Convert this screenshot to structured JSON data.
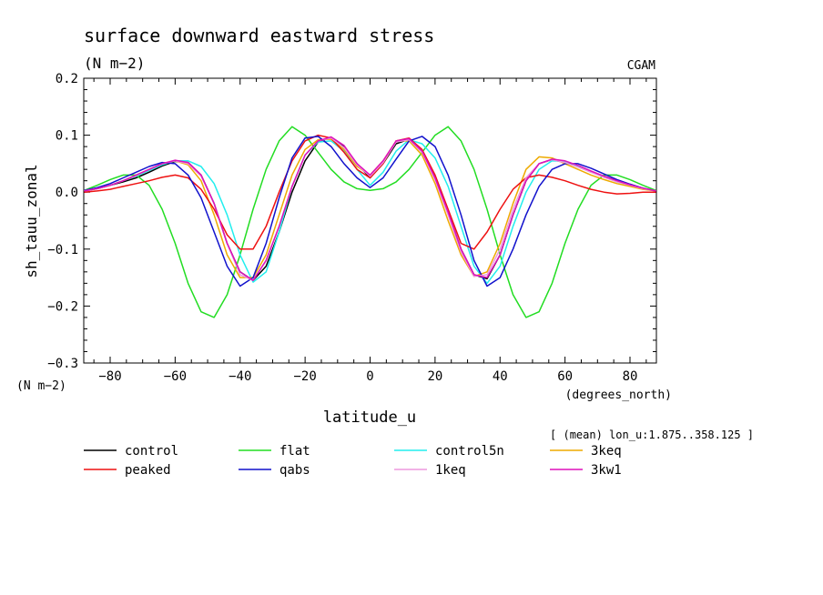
{
  "chart_data": {
    "type": "line",
    "title": "surface downward eastward stress",
    "subtitle": "(N m−2)",
    "source_label": "CGAM",
    "ylabel": "sh_tauu_zonal",
    "y_units": "(N m−2)",
    "xlabel": "latitude_u",
    "x_units": "(degrees_north)",
    "mean_note": "[ (mean) lon_u:1.875..358.125 ]",
    "xlim": [
      -88.125,
      88.125
    ],
    "ylim": [
      -0.3,
      0.2
    ],
    "x_ticks": [
      -80,
      -60,
      -40,
      -20,
      0,
      20,
      40,
      60,
      80
    ],
    "y_ticks": [
      -0.3,
      -0.2,
      -0.1,
      0.0,
      0.1,
      0.2
    ],
    "y_tick_labels": [
      "−0.3",
      "−0.2",
      "−0.1",
      "0.0",
      "0.1",
      "0.2"
    ],
    "x_tick_labels": [
      "−80",
      "−60",
      "−40",
      "−20",
      "0",
      "20",
      "40",
      "60",
      "80"
    ],
    "grid": false,
    "legend_position": "below",
    "x": [
      -88,
      -84,
      -80,
      -76,
      -72,
      -68,
      -64,
      -60,
      -56,
      -52,
      -48,
      -44,
      -40,
      -36,
      -32,
      -28,
      -24,
      -20,
      -16,
      -12,
      -8,
      -4,
      0,
      4,
      8,
      12,
      16,
      20,
      24,
      28,
      32,
      36,
      40,
      44,
      48,
      52,
      56,
      60,
      64,
      68,
      72,
      76,
      80,
      84,
      88
    ],
    "series": [
      {
        "name": "control",
        "color": "#000000",
        "values": [
          0.002,
          0.006,
          0.012,
          0.018,
          0.025,
          0.035,
          0.046,
          0.054,
          0.052,
          0.03,
          -0.02,
          -0.09,
          -0.14,
          -0.155,
          -0.13,
          -0.07,
          0.0,
          0.055,
          0.088,
          0.096,
          0.08,
          0.05,
          0.025,
          0.05,
          0.085,
          0.093,
          0.07,
          0.025,
          -0.035,
          -0.1,
          -0.145,
          -0.152,
          -0.11,
          -0.04,
          0.02,
          0.05,
          0.057,
          0.052,
          0.045,
          0.036,
          0.028,
          0.02,
          0.013,
          0.007,
          0.002
        ]
      },
      {
        "name": "flat",
        "color": "#22dd22",
        "values": [
          0.003,
          0.012,
          0.022,
          0.03,
          0.03,
          0.012,
          -0.03,
          -0.09,
          -0.16,
          -0.21,
          -0.22,
          -0.18,
          -0.11,
          -0.03,
          0.04,
          0.09,
          0.115,
          0.1,
          0.07,
          0.04,
          0.018,
          0.006,
          0.003,
          0.006,
          0.018,
          0.04,
          0.07,
          0.1,
          0.115,
          0.09,
          0.04,
          -0.03,
          -0.11,
          -0.18,
          -0.22,
          -0.21,
          -0.16,
          -0.09,
          -0.03,
          0.012,
          0.03,
          0.03,
          0.022,
          0.012,
          0.003
        ]
      },
      {
        "name": "control5n",
        "color": "#22eeee",
        "values": [
          0.002,
          0.006,
          0.012,
          0.02,
          0.028,
          0.038,
          0.048,
          0.055,
          0.055,
          0.045,
          0.015,
          -0.04,
          -0.11,
          -0.158,
          -0.14,
          -0.07,
          0.01,
          0.065,
          0.088,
          0.09,
          0.072,
          0.04,
          0.012,
          0.035,
          0.072,
          0.092,
          0.085,
          0.06,
          0.01,
          -0.06,
          -0.13,
          -0.16,
          -0.13,
          -0.06,
          0.0,
          0.04,
          0.055,
          0.054,
          0.045,
          0.035,
          0.027,
          0.018,
          0.012,
          0.006,
          0.002
        ]
      },
      {
        "name": "3keq",
        "color": "#eeaa00",
        "values": [
          0.002,
          0.006,
          0.012,
          0.02,
          0.03,
          0.04,
          0.05,
          0.055,
          0.048,
          0.02,
          -0.04,
          -0.11,
          -0.15,
          -0.15,
          -0.11,
          -0.04,
          0.03,
          0.075,
          0.092,
          0.093,
          0.075,
          0.045,
          0.03,
          0.055,
          0.09,
          0.09,
          0.065,
          0.015,
          -0.05,
          -0.11,
          -0.148,
          -0.14,
          -0.09,
          -0.02,
          0.04,
          0.062,
          0.06,
          0.05,
          0.04,
          0.03,
          0.022,
          0.015,
          0.01,
          0.005,
          0.002
        ]
      },
      {
        "name": "peaked",
        "color": "#ee1111",
        "values": [
          0.0,
          0.002,
          0.005,
          0.01,
          0.015,
          0.02,
          0.026,
          0.03,
          0.025,
          0.005,
          -0.03,
          -0.075,
          -0.1,
          -0.1,
          -0.06,
          0.0,
          0.055,
          0.09,
          0.1,
          0.095,
          0.07,
          0.04,
          0.025,
          0.05,
          0.09,
          0.095,
          0.075,
          0.03,
          -0.03,
          -0.09,
          -0.1,
          -0.07,
          -0.03,
          0.005,
          0.025,
          0.03,
          0.026,
          0.02,
          0.012,
          0.005,
          0.0,
          -0.003,
          -0.002,
          0.0,
          0.0
        ]
      },
      {
        "name": "qabs",
        "color": "#1111cc",
        "values": [
          0.003,
          0.008,
          0.015,
          0.025,
          0.035,
          0.045,
          0.052,
          0.05,
          0.03,
          -0.01,
          -0.07,
          -0.13,
          -0.165,
          -0.15,
          -0.09,
          -0.01,
          0.06,
          0.095,
          0.098,
          0.08,
          0.05,
          0.025,
          0.008,
          0.025,
          0.058,
          0.09,
          0.098,
          0.08,
          0.03,
          -0.04,
          -0.12,
          -0.165,
          -0.15,
          -0.1,
          -0.04,
          0.01,
          0.04,
          0.05,
          0.05,
          0.042,
          0.032,
          0.022,
          0.014,
          0.007,
          0.002
        ]
      },
      {
        "name": "1keq",
        "color": "#ee99dd",
        "values": [
          0.002,
          0.006,
          0.012,
          0.02,
          0.029,
          0.04,
          0.05,
          0.055,
          0.05,
          0.028,
          -0.02,
          -0.09,
          -0.145,
          -0.155,
          -0.12,
          -0.06,
          0.01,
          0.065,
          0.09,
          0.095,
          0.078,
          0.048,
          0.028,
          0.052,
          0.088,
          0.092,
          0.07,
          0.022,
          -0.04,
          -0.105,
          -0.148,
          -0.145,
          -0.1,
          -0.03,
          0.025,
          0.05,
          0.057,
          0.052,
          0.044,
          0.035,
          0.026,
          0.018,
          0.012,
          0.006,
          0.002
        ]
      },
      {
        "name": "3kw1",
        "color": "#dd11bb",
        "values": [
          0.002,
          0.006,
          0.012,
          0.02,
          0.03,
          0.04,
          0.05,
          0.056,
          0.052,
          0.03,
          -0.02,
          -0.09,
          -0.14,
          -0.155,
          -0.12,
          -0.06,
          0.01,
          0.065,
          0.09,
          0.097,
          0.082,
          0.05,
          0.03,
          0.055,
          0.09,
          0.094,
          0.072,
          0.025,
          -0.035,
          -0.1,
          -0.145,
          -0.15,
          -0.11,
          -0.04,
          0.02,
          0.05,
          0.058,
          0.055,
          0.047,
          0.037,
          0.028,
          0.02,
          0.013,
          0.007,
          0.002
        ]
      }
    ],
    "legend_order": [
      "control",
      "flat",
      "control5n",
      "3keq",
      "peaked",
      "qabs",
      "1keq",
      "3kw1"
    ]
  }
}
